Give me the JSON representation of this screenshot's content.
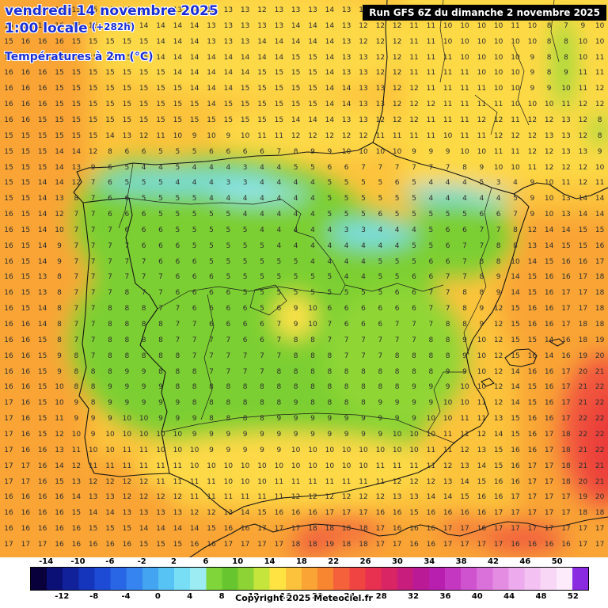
{
  "header": {
    "date": "vendredi 14 novembre 2025",
    "time": "1:00 locale",
    "offset": "(+282h)",
    "variable": "Températures à 2m (°C)",
    "run": "Run GFS 6Z du dimanche 2 novembre 2025"
  },
  "footer": {
    "copyright": "Copyright 2025 Meteociel.fr"
  },
  "colors": {
    "title_blue": "#1b2fd4",
    "run_bg": "#000000",
    "run_fg": "#ffffff",
    "number_color": "#2e2e2e",
    "base_field": "#fcc33c",
    "ocean_orange": "#f9a434",
    "cold_green": "#7ccf33",
    "cold_cyan": "#7adfe9",
    "hot_red": "#ea3c3a"
  },
  "chart_data": {
    "type": "heatmap",
    "title": "Températures à 2m (°C)",
    "unit": "°C",
    "n_cols": 36,
    "rows": [
      "15 15 16 16 15 15 15 15 14 14 13 14 13 13 13 12 13 13 13 14 13 13 12 12 11 11 10 10 11 11 8 13 13 13 13 13",
      "15 16 16 16 15 15 15 15 14 14 14 14 13 13 13 13 13 14 14 14 13 12 12 12 11 11 10 10 10 10 11 10 8 7 9 10",
      "15 16 16 16 15 15 15 15 15 14 14 14 13 13 13 14 14 14 14 14 13 12 12 12 11 11 10 10 10 10 10 10 8 8 10 10",
      "16 16 16 16 15 15 15 15 15 14 14 14 14 14 14 14 14 15 15 14 13 13 12 12 11 11 11 10 10 10 10 9 8 8 10 11",
      "16 16 16 15 15 15 15 15 15 15 14 14 14 14 14 15 15 15 15 14 13 13 12 12 11 11 11 11 10 10 10 9 8 9 11 11",
      "16 16 16 15 15 15 15 15 15 15 15 14 14 14 15 15 15 15 15 14 14 13 13 12 12 11 11 11 11 10 10 9 9 10 11 12",
      "16 16 16 15 15 15 15 15 15 15 15 15 14 15 15 15 15 15 15 14 14 13 13 12 12 12 11 11 11 11 10 10 10 11 12 12",
      "16 16 15 15 15 15 15 15 15 15 15 15 15 15 15 15 15 14 14 14 13 13 12 12 12 11 11 11 12 12 11 12 12 13 12 8",
      "15 15 15 15 15 15 14 13 12 11 10 9 10 9 10 11 11 12 12 12 12 12 11 11 11 11 10 11 11 12 12 12 13 13 12 8",
      "15 15 15 14 14 12 8 6 6 5 5 5 6 6 6 6 7 8 9 9 10 10 10 10 9 9 9 10 10 11 11 12 12 13 13 9",
      "15 15 15 14 13 9 6 5 4 4 5 4 4 4 3 4 4 5 5 6 6 7 7 7 7 7 7 8 9 10 10 11 12 12 12 10",
      "15 15 14 14 12 7 6 5 5 5 4 4 4 3 3 4 4 4 4 5 5 5 5 6 5 4 4 4 5 3 4 9 10 11 12 11",
      "15 15 14 13 8 7 6 6 5 5 5 5 4 4 4 4 4 4 4 5 5 5 5 5 5 4 4 4 4 4 5 9 10 13 14 14",
      "16 15 14 12 7 7 6 6 6 5 5 5 5 5 4 4 4 4 4 5 5 5 6 5 5 5 5 5 6 6 7 9 10 13 14 14",
      "16 15 14 10 7 7 7 6 6 6 5 5 5 5 5 4 4 4 4 4 3 3 4 4 4 5 6 6 7 7 8 12 14 14 15 15",
      "16 15 14 9 7 7 7 7 6 6 6 5 5 5 5 5 4 4 4 4 4 4 4 4 5 5 6 7 7 8 8 13 14 15 15 16",
      "16 15 14 9 7 7 7 7 7 6 6 6 5 5 5 5 5 5 4 4 4 4 5 5 5 6 6 7 8 8 10 14 15 16 16 17",
      "16 15 13 8 7 7 7 7 7 7 6 6 6 5 5 5 5 5 5 5 4 4 5 5 6 6 7 7 8 9 14 15 16 16 17 18",
      "16 15 13 8 7 7 7 8 7 7 6 6 6 6 5 5 5 5 5 5 5 5 5 6 6 7 7 8 8 9 14 15 16 17 17 18",
      "16 15 14 8 7 7 8 8 8 7 7 6 6 6 6 5 6 9 10 6 6 6 6 6 6 7 7 8 9 12 15 16 16 17 17 18",
      "16 16 14 8 7 7 8 8 8 8 7 7 6 6 6 6 7 9 10 7 6 6 6 7 7 7 8 8 9 12 15 16 16 17 18 18",
      "16 16 15 8 7 7 8 8 8 8 7 7 7 7 6 6 7 8 8 7 7 7 7 7 7 8 8 9 10 12 15 15 14 16 18 19",
      "16 16 15 9 8 7 8 8 8 8 8 7 7 7 7 7 7 8 8 8 7 7 7 8 8 8 8 9 10 12 15 16 14 16 19 20",
      "16 16 15 9 8 8 8 9 9 8 8 8 7 7 7 7 8 8 8 8 8 8 8 8 8 8 9 9 10 12 14 16 16 17 20 21",
      "16 16 15 10 8 8 9 9 9 9 8 8 8 8 8 8 8 8 8 8 8 8 8 8 9 9 9 10 10 12 14 15 16 17 21 22",
      "17 16 15 10 9 8 9 9 9 9 9 8 8 8 8 8 8 9 8 8 8 8 9 9 9 9 10 10 11 12 14 15 16 17 21 22",
      "17 16 15 11 9 9 9 10 10 9 9 9 8 8 8 8 9 9 9 9 9 9 9 9 9 10 10 11 11 13 15 16 16 17 22 22",
      "17 16 15 12 10 9 10 10 10 10 10 9 9 9 9 9 9 9 9 9 9 9 9 10 10 10 11 11 12 14 15 16 17 18 22 22",
      "17 16 16 13 11 10 10 11 11 10 10 10 9 9 9 9 9 10 10 10 10 10 10 10 10 11 11 12 13 15 16 16 17 18 21 22",
      "17 17 16 14 12 11 11 11 11 11 11 10 10 10 10 10 10 10 10 10 10 10 11 11 11 11 12 13 14 15 16 17 17 18 21 21",
      "17 17 16 15 13 12 12 12 12 11 11 11 11 10 10 10 11 11 11 11 11 11 11 12 12 12 13 14 15 16 16 17 17 18 20 21",
      "16 16 16 16 14 13 13 12 12 12 12 11 11 11 11 11 11 12 12 12 12 12 12 13 13 14 14 15 16 16 17 17 17 17 19 20",
      "16 16 16 16 15 14 14 13 13 13 13 12 12 13 14 15 16 16 16 17 17 17 16 16 15 16 16 16 16 17 17 17 17 17 18 18",
      "16 16 16 16 16 15 15 15 14 14 14 14 15 16 16 17 17 17 18 18 18 18 17 16 16 16 17 17 16 17 17 17 17 17 17 17",
      "17 17 17 16 16 16 16 16 15 15 15 16 16 17 17 17 17 18 18 19 18 18 17 17 16 16 17 17 17 17 16 16 16 16 17 17"
    ],
    "colorbar": {
      "min": -16,
      "max": 54,
      "ticks_top": [
        -14,
        -10,
        -6,
        -2,
        2,
        6,
        10,
        14,
        18,
        22,
        26,
        30,
        34,
        38,
        42,
        46,
        50
      ],
      "ticks_bottom": [
        -12,
        -8,
        -4,
        0,
        4,
        8,
        12,
        16,
        20,
        24,
        28,
        32,
        36,
        40,
        44,
        48,
        52
      ],
      "stops": [
        {
          "t": -16,
          "c": "#08003a"
        },
        {
          "t": -14,
          "c": "#0b1076"
        },
        {
          "t": -12,
          "c": "#10219a"
        },
        {
          "t": -10,
          "c": "#1535bd"
        },
        {
          "t": -8,
          "c": "#1d4bd6"
        },
        {
          "t": -6,
          "c": "#2966e6"
        },
        {
          "t": -4,
          "c": "#3584ef"
        },
        {
          "t": -2,
          "c": "#43a4f2"
        },
        {
          "t": 0,
          "c": "#57c3f4"
        },
        {
          "t": 2,
          "c": "#77def6"
        },
        {
          "t": 4,
          "c": "#9cecf3"
        },
        {
          "t": 6,
          "c": "#7fd53a"
        },
        {
          "t": 8,
          "c": "#67c52f"
        },
        {
          "t": 10,
          "c": "#8dd336"
        },
        {
          "t": 12,
          "c": "#c5e43c"
        },
        {
          "t": 14,
          "c": "#ffe343"
        },
        {
          "t": 16,
          "c": "#fcc23c"
        },
        {
          "t": 18,
          "c": "#f9a434"
        },
        {
          "t": 20,
          "c": "#f8852f"
        },
        {
          "t": 22,
          "c": "#f4613b"
        },
        {
          "t": 24,
          "c": "#ef4442"
        },
        {
          "t": 26,
          "c": "#e83050"
        },
        {
          "t": 28,
          "c": "#d92563"
        },
        {
          "t": 30,
          "c": "#c91d7d"
        },
        {
          "t": 32,
          "c": "#bb1a97"
        },
        {
          "t": 34,
          "c": "#b81fae"
        },
        {
          "t": 36,
          "c": "#c437c0"
        },
        {
          "t": 38,
          "c": "#cf52ce"
        },
        {
          "t": 40,
          "c": "#da70da"
        },
        {
          "t": 42,
          "c": "#e48ce2"
        },
        {
          "t": 44,
          "c": "#edaaec"
        },
        {
          "t": 46,
          "c": "#f4c2f2"
        },
        {
          "t": 48,
          "c": "#f8d6f6"
        },
        {
          "t": 50,
          "c": "#fdeafb"
        },
        {
          "t": 52,
          "c": "#8a2be2"
        }
      ]
    }
  }
}
